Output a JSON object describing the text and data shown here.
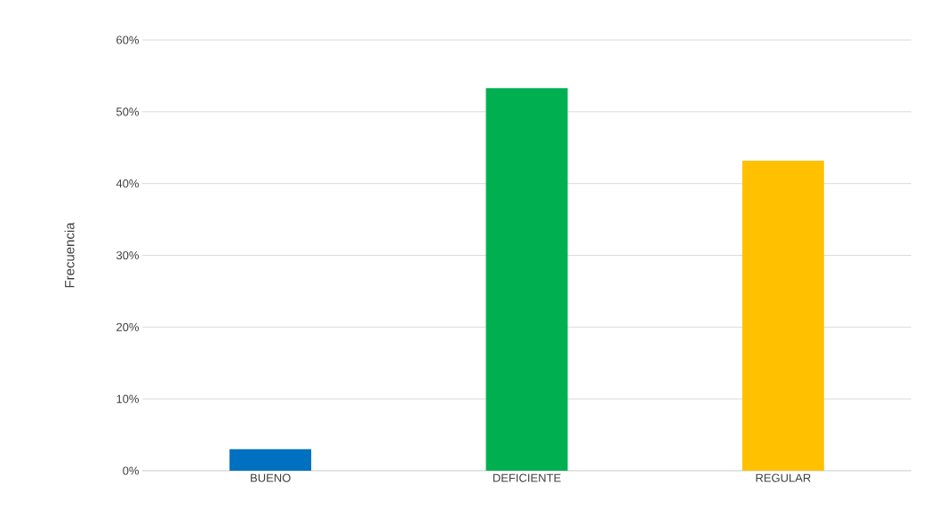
{
  "chart_data": {
    "type": "bar",
    "ylabel": "Frecuencia",
    "categories": [
      "BUENO",
      "DEFICIENTE",
      "REGULAR"
    ],
    "values": [
      3.0,
      53.3,
      43.2
    ],
    "colors": [
      "#0070c0",
      "#00b050",
      "#ffc000"
    ],
    "ylim": [
      0,
      60
    ],
    "yticks": [
      {
        "value": 0,
        "label": "0%"
      },
      {
        "value": 10,
        "label": "10%"
      },
      {
        "value": 20,
        "label": "20%"
      },
      {
        "value": 30,
        "label": "30%"
      },
      {
        "value": 40,
        "label": "40%"
      },
      {
        "value": 50,
        "label": "50%"
      },
      {
        "value": 60,
        "label": "60%"
      }
    ],
    "grid": "y"
  }
}
